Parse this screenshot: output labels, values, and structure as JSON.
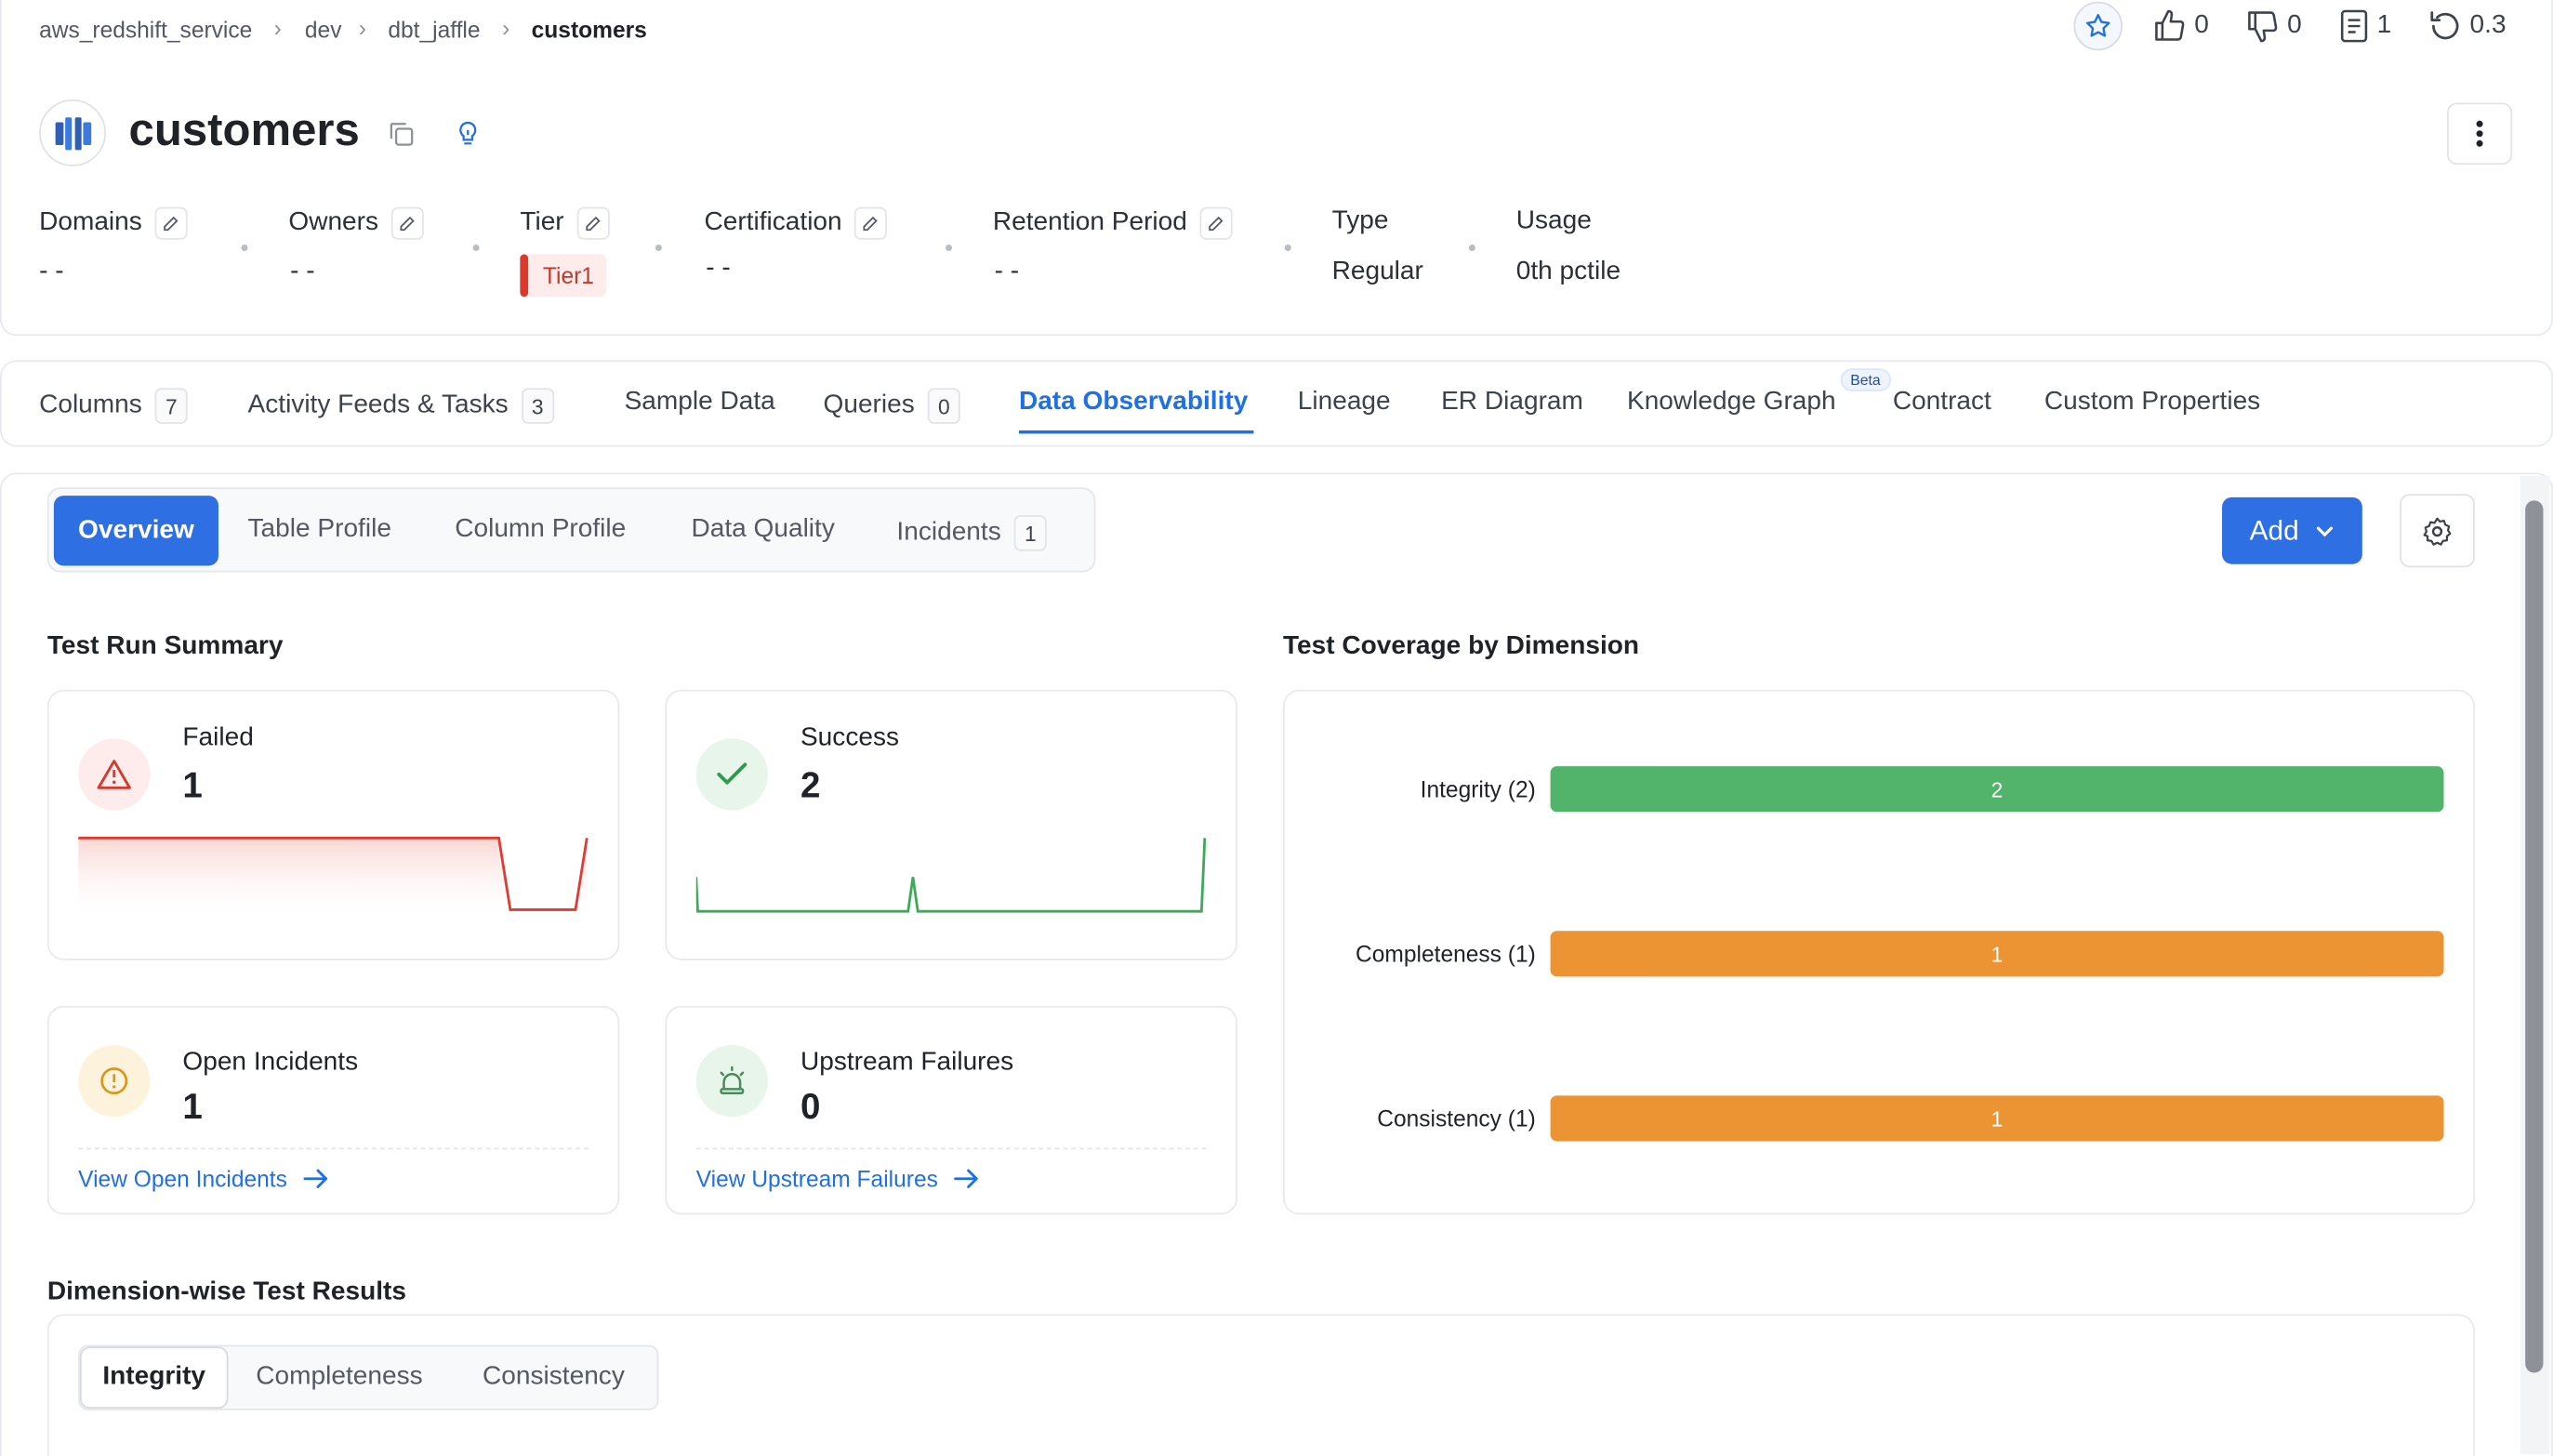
{
  "breadcrumb": [
    "aws_redshift_service",
    "dev",
    "dbt_jaffle",
    "customers"
  ],
  "header_actions": {
    "likes": "0",
    "dislikes": "0",
    "docs": "1",
    "version": "0.3"
  },
  "entity": {
    "title": "customers"
  },
  "meta": {
    "domains": {
      "label": "Domains",
      "value": "- -"
    },
    "owners": {
      "label": "Owners",
      "value": "- -"
    },
    "tier": {
      "label": "Tier",
      "value": "Tier1"
    },
    "certification": {
      "label": "Certification",
      "value": "- -"
    },
    "retention": {
      "label": "Retention Period",
      "value": "- -"
    },
    "type": {
      "label": "Type",
      "value": "Regular"
    },
    "usage": {
      "label": "Usage",
      "value": "0th pctile"
    }
  },
  "tabs": [
    {
      "label": "Columns",
      "count": "7"
    },
    {
      "label": "Activity Feeds & Tasks",
      "count": "3"
    },
    {
      "label": "Sample Data"
    },
    {
      "label": "Queries",
      "count": "0"
    },
    {
      "label": "Data Observability"
    },
    {
      "label": "Lineage"
    },
    {
      "label": "ER Diagram"
    },
    {
      "label": "Knowledge Graph",
      "badge": "Beta"
    },
    {
      "label": "Contract"
    },
    {
      "label": "Custom Properties"
    }
  ],
  "subtabs": [
    {
      "label": "Overview"
    },
    {
      "label": "Table Profile"
    },
    {
      "label": "Column Profile"
    },
    {
      "label": "Data Quality"
    },
    {
      "label": "Incidents",
      "count": "1"
    }
  ],
  "add_button": "Add",
  "summary": {
    "title": "Test Run Summary",
    "failed": {
      "label": "Failed",
      "value": "1"
    },
    "success": {
      "label": "Success",
      "value": "2"
    },
    "incidents": {
      "label": "Open Incidents",
      "value": "1",
      "link": "View Open Incidents"
    },
    "upstream": {
      "label": "Upstream Failures",
      "value": "0",
      "link": "View Upstream Failures"
    }
  },
  "coverage": {
    "title": "Test Coverage by Dimension"
  },
  "chart_data": {
    "type": "bar",
    "orientation": "horizontal",
    "categories": [
      "Integrity (2)",
      "Completeness (1)",
      "Consistency (1)"
    ],
    "values": [
      2,
      1,
      1
    ],
    "value_labels": [
      "2",
      "1",
      "1"
    ],
    "colors": [
      "#52b46a",
      "#ec9434",
      "#ec9434"
    ],
    "title": "Test Coverage by Dimension"
  },
  "dimension_results": {
    "title": "Dimension-wise Test Results",
    "segments": [
      "Integrity",
      "Completeness",
      "Consistency"
    ]
  },
  "colors": {
    "primary": "#1f6fe5",
    "failed": "#e0403a",
    "success": "#3daa5a",
    "warning": "#e6a317"
  }
}
